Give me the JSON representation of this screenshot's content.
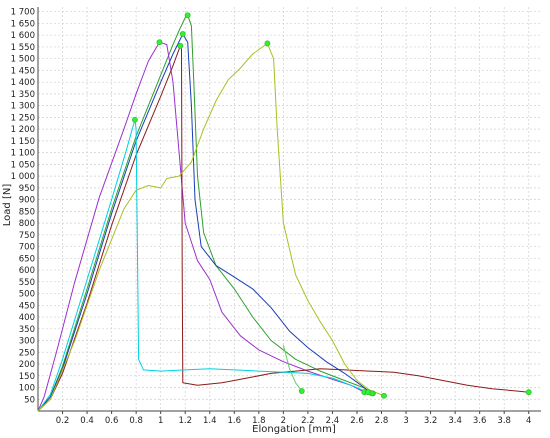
{
  "chart_data": {
    "type": "line",
    "xlabel": "Elongation [mm]",
    "ylabel": "Load [N]",
    "xlim": [
      0,
      4.1
    ],
    "ylim": [
      0,
      1720
    ],
    "grid": true,
    "x_ticks": [
      "0.2",
      "0.4",
      "0.6",
      "0.8",
      "1",
      "1.2",
      "1.4",
      "1.6",
      "1.8",
      "2",
      "2.2",
      "2.4",
      "2.6",
      "2.8",
      "3",
      "3.2",
      "3.4",
      "3.6",
      "3.8",
      "4"
    ],
    "y_ticks": [
      "50",
      "100",
      "150",
      "200",
      "250",
      "300",
      "350",
      "400",
      "450",
      "500",
      "550",
      "600",
      "650",
      "700",
      "750",
      "800",
      "850",
      "900",
      "950",
      "1 000",
      "1 050",
      "1 100",
      "1 150",
      "1 200",
      "1 250",
      "1 300",
      "1 350",
      "1 400",
      "1 450",
      "1 500",
      "1 550",
      "1 600",
      "1 650",
      "1 700"
    ],
    "series": [
      {
        "color": "#2e9e2e",
        "marker": [
          1.22,
          1685
        ],
        "end_marker": [
          2.73,
          75
        ],
        "points": [
          [
            0,
            0
          ],
          [
            0.1,
            60
          ],
          [
            0.2,
            190
          ],
          [
            0.4,
            520
          ],
          [
            0.6,
            860
          ],
          [
            0.8,
            1170
          ],
          [
            1.0,
            1430
          ],
          [
            1.1,
            1560
          ],
          [
            1.15,
            1620
          ],
          [
            1.2,
            1675
          ],
          [
            1.22,
            1685
          ],
          [
            1.25,
            1640
          ],
          [
            1.27,
            1400
          ],
          [
            1.3,
            1000
          ],
          [
            1.35,
            760
          ],
          [
            1.45,
            620
          ],
          [
            1.6,
            520
          ],
          [
            1.75,
            400
          ],
          [
            1.9,
            300
          ],
          [
            2.1,
            220
          ],
          [
            2.3,
            170
          ],
          [
            2.5,
            130
          ],
          [
            2.65,
            100
          ],
          [
            2.73,
            75
          ]
        ]
      },
      {
        "color": "#1a3db8",
        "marker": [
          1.18,
          1605
        ],
        "end_marker": [
          2.72,
          75
        ],
        "points": [
          [
            0,
            0
          ],
          [
            0.1,
            60
          ],
          [
            0.2,
            180
          ],
          [
            0.4,
            500
          ],
          [
            0.6,
            840
          ],
          [
            0.8,
            1150
          ],
          [
            1.0,
            1400
          ],
          [
            1.1,
            1520
          ],
          [
            1.18,
            1605
          ],
          [
            1.22,
            1570
          ],
          [
            1.25,
            1300
          ],
          [
            1.28,
            900
          ],
          [
            1.33,
            700
          ],
          [
            1.45,
            620
          ],
          [
            1.6,
            570
          ],
          [
            1.75,
            520
          ],
          [
            1.9,
            440
          ],
          [
            2.05,
            340
          ],
          [
            2.2,
            270
          ],
          [
            2.35,
            210
          ],
          [
            2.5,
            160
          ],
          [
            2.62,
            115
          ],
          [
            2.72,
            75
          ]
        ]
      },
      {
        "color": "#9b30d0",
        "marker": [
          0.99,
          1570
        ],
        "end_marker": [
          2.66,
          80
        ],
        "points": [
          [
            0,
            0
          ],
          [
            0.05,
            60
          ],
          [
            0.15,
            250
          ],
          [
            0.3,
            550
          ],
          [
            0.5,
            910
          ],
          [
            0.7,
            1200
          ],
          [
            0.8,
            1350
          ],
          [
            0.9,
            1490
          ],
          [
            0.99,
            1570
          ],
          [
            1.05,
            1560
          ],
          [
            1.1,
            1400
          ],
          [
            1.15,
            1100
          ],
          [
            1.2,
            800
          ],
          [
            1.3,
            640
          ],
          [
            1.4,
            560
          ],
          [
            1.5,
            420
          ],
          [
            1.65,
            320
          ],
          [
            1.8,
            260
          ],
          [
            2.0,
            210
          ],
          [
            2.2,
            170
          ],
          [
            2.4,
            135
          ],
          [
            2.55,
            110
          ],
          [
            2.66,
            80
          ]
        ]
      },
      {
        "color": "#8b1a1a",
        "marker": [
          1.16,
          1555
        ],
        "end_marker": [
          4.0,
          80
        ],
        "points": [
          [
            0,
            0
          ],
          [
            0.1,
            50
          ],
          [
            0.2,
            160
          ],
          [
            0.4,
            460
          ],
          [
            0.6,
            790
          ],
          [
            0.8,
            1090
          ],
          [
            1.0,
            1340
          ],
          [
            1.1,
            1470
          ],
          [
            1.16,
            1555
          ],
          [
            1.17,
            1540
          ],
          [
            1.175,
            600
          ],
          [
            1.18,
            120
          ],
          [
            1.3,
            110
          ],
          [
            1.5,
            120
          ],
          [
            1.7,
            140
          ],
          [
            1.9,
            160
          ],
          [
            2.1,
            170
          ],
          [
            2.3,
            180
          ],
          [
            2.5,
            175
          ],
          [
            2.7,
            170
          ],
          [
            2.9,
            165
          ],
          [
            3.1,
            150
          ],
          [
            3.3,
            130
          ],
          [
            3.5,
            110
          ],
          [
            3.7,
            95
          ],
          [
            3.9,
            85
          ],
          [
            4.0,
            80
          ]
        ]
      },
      {
        "color": "#00d0e0",
        "marker": [
          0.79,
          1240
        ],
        "end_marker": [
          2.69,
          80
        ],
        "points": [
          [
            0,
            0
          ],
          [
            0.1,
            70
          ],
          [
            0.2,
            220
          ],
          [
            0.4,
            560
          ],
          [
            0.6,
            900
          ],
          [
            0.72,
            1110
          ],
          [
            0.79,
            1240
          ],
          [
            0.8,
            1200
          ],
          [
            0.81,
            700
          ],
          [
            0.82,
            220
          ],
          [
            0.86,
            175
          ],
          [
            1.0,
            170
          ],
          [
            1.2,
            175
          ],
          [
            1.4,
            180
          ],
          [
            1.6,
            175
          ],
          [
            1.8,
            170
          ],
          [
            2.0,
            165
          ],
          [
            2.2,
            160
          ],
          [
            2.4,
            140
          ],
          [
            2.55,
            110
          ],
          [
            2.69,
            80
          ]
        ]
      },
      {
        "color": "#a8c020",
        "marker": [
          1.87,
          1565
        ],
        "end_marker": [
          2.82,
          65
        ],
        "points": [
          [
            0,
            0
          ],
          [
            0.1,
            50
          ],
          [
            0.3,
            300
          ],
          [
            0.5,
            600
          ],
          [
            0.7,
            860
          ],
          [
            0.8,
            940
          ],
          [
            0.9,
            960
          ],
          [
            1.0,
            950
          ],
          [
            1.05,
            990
          ],
          [
            1.15,
            1000
          ],
          [
            1.25,
            1060
          ],
          [
            1.35,
            1200
          ],
          [
            1.45,
            1320
          ],
          [
            1.55,
            1410
          ],
          [
            1.65,
            1460
          ],
          [
            1.75,
            1520
          ],
          [
            1.87,
            1565
          ],
          [
            1.92,
            1500
          ],
          [
            1.95,
            1200
          ],
          [
            2.0,
            800
          ],
          [
            2.1,
            580
          ],
          [
            2.2,
            470
          ],
          [
            2.3,
            380
          ],
          [
            2.4,
            300
          ],
          [
            2.5,
            200
          ],
          [
            2.6,
            130
          ],
          [
            2.7,
            90
          ],
          [
            2.82,
            65
          ]
        ]
      },
      {
        "color": "#60d060",
        "marker": null,
        "end_marker": [
          2.15,
          85
        ],
        "points": [
          [
            2.0,
            280
          ],
          [
            2.05,
            180
          ],
          [
            2.1,
            120
          ],
          [
            2.15,
            85
          ]
        ]
      }
    ]
  }
}
